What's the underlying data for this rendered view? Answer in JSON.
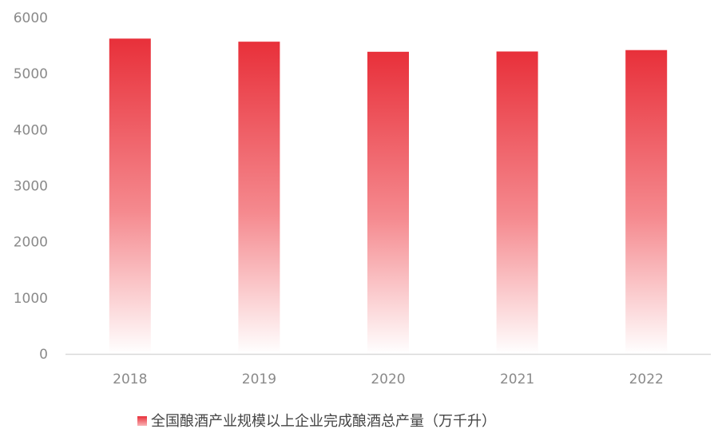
{
  "chart_data": {
    "type": "bar",
    "categories": [
      "2018",
      "2019",
      "2020",
      "2021",
      "2022"
    ],
    "series": [
      {
        "name": "全国酿酒产业规模以上企业完成酿酒总产量（万千升）",
        "values": [
          5625,
          5570,
          5390,
          5395,
          5420
        ]
      }
    ],
    "title": "",
    "xlabel": "",
    "ylabel": "",
    "ylim": [
      0,
      6000
    ],
    "yticks": [
      0,
      1000,
      2000,
      3000,
      4000,
      5000,
      6000
    ],
    "grid": false,
    "legend_position": "bottom",
    "colors": {
      "bar_top": "#e8303a",
      "bar_bottom": "#ffffff",
      "axis": "#d9d9d9",
      "tick_text": "#8a8a8a",
      "legend_text": "#444444"
    }
  }
}
